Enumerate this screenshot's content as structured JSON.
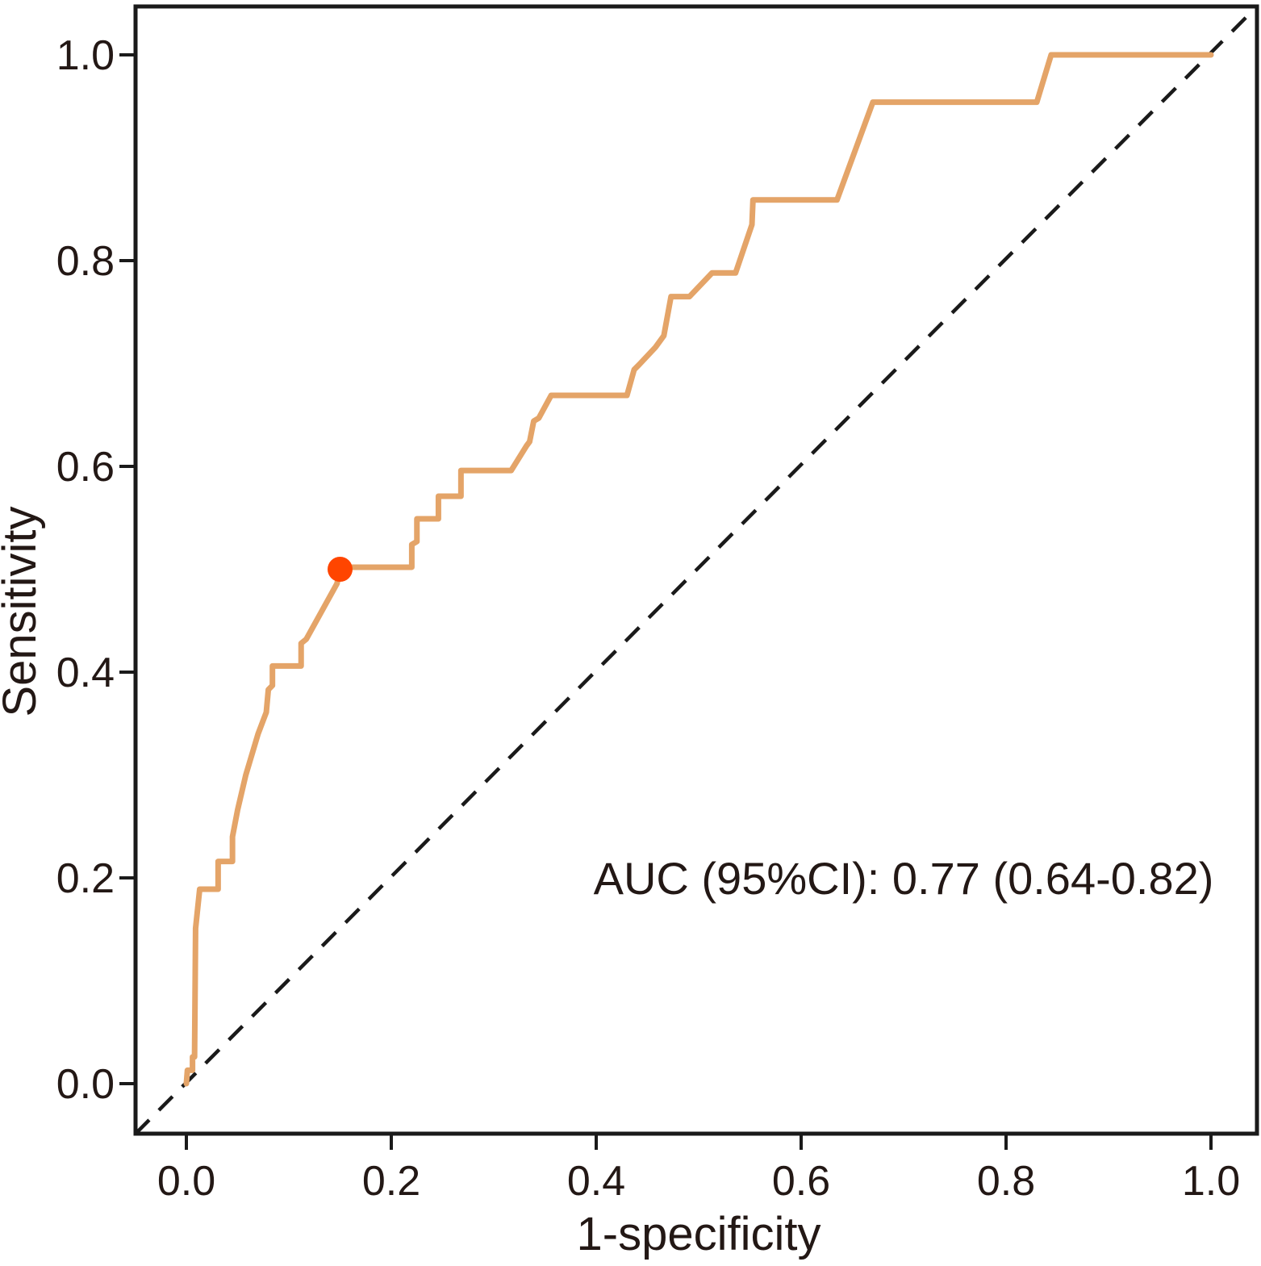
{
  "figure": {
    "background": "#ffffff",
    "axis_color": "#1a1a1a",
    "text_color": "#231815"
  },
  "chart_data": {
    "type": "line",
    "subtype": "roc-curve",
    "title": "",
    "xlabel": "1-specificity",
    "ylabel": "Sensitivity",
    "grid": false,
    "legend": "none",
    "xlim": [
      -0.05,
      1.045
    ],
    "ylim": [
      -0.049,
      1.047
    ],
    "x_ticks": [
      "0.0",
      "0.2",
      "0.4",
      "0.6",
      "0.8",
      "1.0"
    ],
    "x_tick_values": [
      0,
      0.2,
      0.4,
      0.6,
      0.8,
      1.0
    ],
    "y_ticks": [
      "0.0",
      "0.2",
      "0.4",
      "0.6",
      "0.8",
      "1.0"
    ],
    "y_tick_values": [
      0,
      0.2,
      0.4,
      0.6,
      0.8,
      1.0
    ],
    "annotation": {
      "text": "AUC (95%CI): 0.77 (0.64-0.82)",
      "auc": 0.77,
      "ci_low": 0.64,
      "ci_high": 0.82
    },
    "series": [
      {
        "name": "ROC curve",
        "color": "#E4A468",
        "line_width": 7,
        "points": [
          [
            0.0,
            0.0
          ],
          [
            0.001,
            0.013
          ],
          [
            0.006,
            0.013
          ],
          [
            0.006,
            0.026
          ],
          [
            0.008,
            0.026
          ],
          [
            0.009,
            0.151
          ],
          [
            0.013,
            0.189
          ],
          [
            0.031,
            0.189
          ],
          [
            0.031,
            0.216
          ],
          [
            0.045,
            0.216
          ],
          [
            0.045,
            0.24
          ],
          [
            0.05,
            0.266
          ],
          [
            0.058,
            0.3
          ],
          [
            0.07,
            0.34
          ],
          [
            0.078,
            0.361
          ],
          [
            0.08,
            0.383
          ],
          [
            0.084,
            0.387
          ],
          [
            0.084,
            0.406
          ],
          [
            0.112,
            0.406
          ],
          [
            0.112,
            0.428
          ],
          [
            0.117,
            0.432
          ],
          [
            0.147,
            0.486
          ],
          [
            0.15,
            0.5
          ],
          [
            0.162,
            0.502
          ],
          [
            0.22,
            0.502
          ],
          [
            0.22,
            0.524
          ],
          [
            0.225,
            0.527
          ],
          [
            0.225,
            0.549
          ],
          [
            0.246,
            0.549
          ],
          [
            0.246,
            0.571
          ],
          [
            0.268,
            0.571
          ],
          [
            0.268,
            0.596
          ],
          [
            0.317,
            0.596
          ],
          [
            0.332,
            0.62
          ],
          [
            0.335,
            0.624
          ],
          [
            0.339,
            0.644
          ],
          [
            0.344,
            0.647
          ],
          [
            0.356,
            0.669
          ],
          [
            0.43,
            0.669
          ],
          [
            0.437,
            0.694
          ],
          [
            0.442,
            0.699
          ],
          [
            0.458,
            0.716
          ],
          [
            0.466,
            0.727
          ],
          [
            0.473,
            0.765
          ],
          [
            0.491,
            0.765
          ],
          [
            0.513,
            0.788
          ],
          [
            0.536,
            0.788
          ],
          [
            0.552,
            0.835
          ],
          [
            0.553,
            0.859
          ],
          [
            0.635,
            0.859
          ],
          [
            0.67,
            0.954
          ],
          [
            0.83,
            0.954
          ],
          [
            0.844,
            1.0
          ],
          [
            1.0,
            1.0
          ]
        ]
      }
    ],
    "reference_line": {
      "name": "chance diagonal",
      "style": "dashed",
      "color": "#1a1a1a",
      "from_corner": "bottom-left",
      "to_corner": "top-right"
    },
    "operating_point": {
      "x": 0.15,
      "y": 0.5,
      "color": "#FF4500",
      "radius": 15.5
    }
  }
}
